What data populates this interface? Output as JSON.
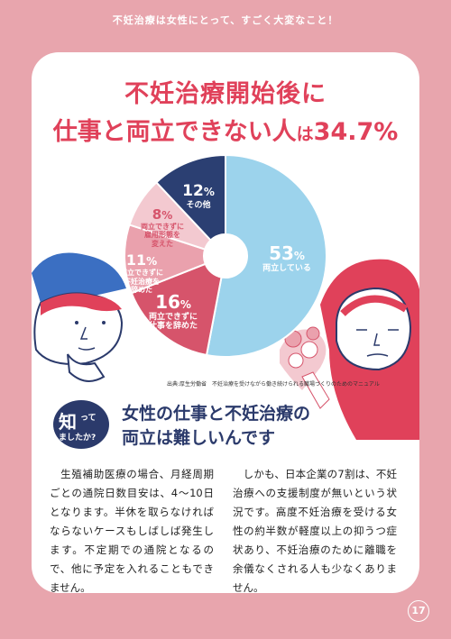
{
  "banner": "不妊治療は女性にとって、すごく大変なこと！",
  "headline": {
    "line1": "不妊治療開始後に",
    "line2_main": "仕事と両立できない人",
    "line2_small": "は",
    "line2_pct": "34.7%"
  },
  "chart_data": {
    "type": "pie",
    "slices": [
      {
        "value": 53,
        "pct": "53",
        "label": "両立している",
        "color": "#9cd3ec"
      },
      {
        "value": 16,
        "pct": "16",
        "label_lines": [
          "両立できずに",
          "仕事を辞めた"
        ],
        "color": "#d6546b"
      },
      {
        "value": 11,
        "pct": "11",
        "label_lines": [
          "両立できずに",
          "不妊治療を",
          "辞めた"
        ],
        "color": "#eaa1ad"
      },
      {
        "value": 8,
        "pct": "8",
        "label_lines": [
          "両立できずに",
          "雇用形態を",
          "変えた"
        ],
        "color": "#f3c9d0"
      },
      {
        "value": 12,
        "pct": "12",
        "label": "その他",
        "color": "#2b3f72"
      }
    ],
    "unit": "%"
  },
  "source": "出典:厚生労働省　不妊治療を受けながら働き続けられる職場づくりのためのマニュアル",
  "badge": {
    "big": "知",
    "small": "って",
    "rest": "ましたか?"
  },
  "subhead": {
    "line1": "女性の仕事と不妊治療の",
    "line2": "両立は難しいんです"
  },
  "body": {
    "left": "　生殖補助医療の場合、月経周期ごとの通院日数目安は、4〜10日となります。半休を取らなければならないケースもしばしば発生します。不定期での通院となるので、他に予定を入れることもできません。",
    "right": "　しかも、日本企業の7割は、不妊治療への支援制度が無いという状況です。高度不妊治療を受ける女性の約半数が軽度以上の抑うつ症状あり、不妊治療のために離職を余儀なくされる人も少なくありません。"
  },
  "page_number": "17"
}
